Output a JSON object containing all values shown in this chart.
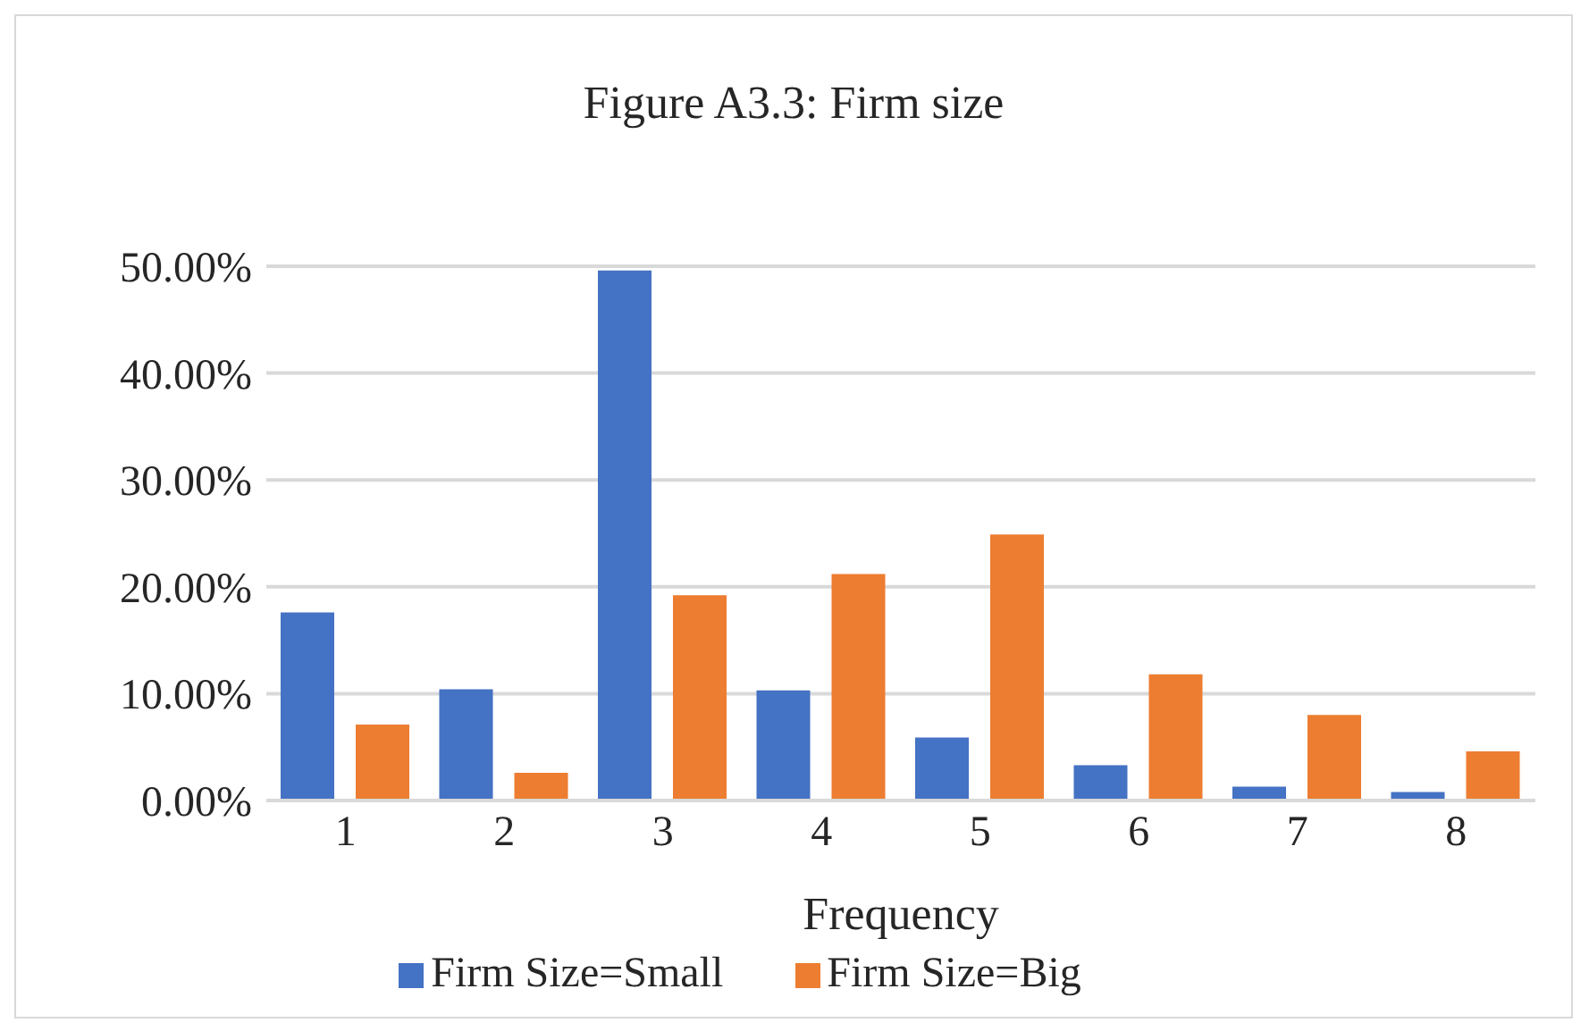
{
  "chart_data": {
    "type": "bar",
    "title": "Figure A3.3: Firm size",
    "xlabel": "Frequency",
    "categories": [
      "1",
      "2",
      "3",
      "4",
      "5",
      "6",
      "7",
      "8"
    ],
    "series": [
      {
        "name": "Firm Size=Small",
        "color": "#4472c4",
        "values": [
          17.6,
          10.4,
          49.6,
          10.3,
          5.9,
          3.3,
          1.3,
          0.8
        ]
      },
      {
        "name": "Firm Size=Big",
        "color": "#ed7d31",
        "values": [
          7.1,
          2.6,
          19.2,
          21.2,
          24.9,
          11.8,
          8.0,
          4.6
        ]
      }
    ],
    "ylim": [
      0,
      50
    ],
    "yticks": [
      {
        "value": 0,
        "label": "0.00%"
      },
      {
        "value": 10,
        "label": "10.00%"
      },
      {
        "value": 20,
        "label": "20.00%"
      },
      {
        "value": 30,
        "label": "30.00%"
      },
      {
        "value": 40,
        "label": "40.00%"
      },
      {
        "value": 50,
        "label": "50.00%"
      }
    ],
    "grid": "y",
    "legend": "bottom"
  }
}
